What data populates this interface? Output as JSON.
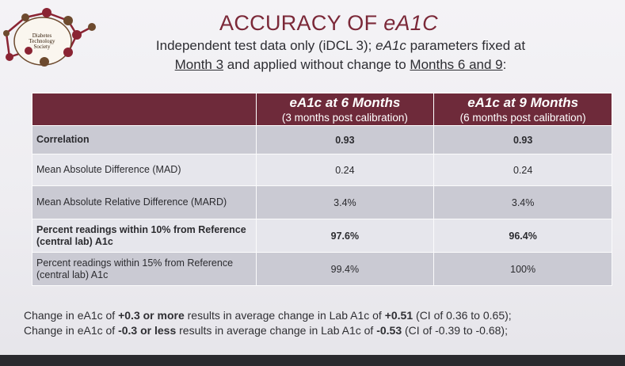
{
  "logo": {
    "lines": [
      "Diabetes",
      "Technology",
      "Society"
    ]
  },
  "title": {
    "main": "ACCURACY OF ",
    "emph": "eA1C"
  },
  "subtitle": {
    "part1": "Independent test data only (iDCL 3); ",
    "part2_italic": "eA1c",
    "part3": " parameters fixed at",
    "part4_underline": "Month 3",
    "part5": " and applied without change to ",
    "part6_underline": "Months 6 and 9",
    "part7": ":"
  },
  "table": {
    "columns": [
      {
        "title": "eA1c at 6 Months",
        "sub": "(3 months post calibration)"
      },
      {
        "title": "eA1c at 9 Months",
        "sub": "(6 months post calibration)"
      }
    ],
    "rows": [
      {
        "label": "Correlation",
        "v6": "0.93",
        "v9": "0.93"
      },
      {
        "label": "Mean Absolute Difference (MAD)",
        "v6": "0.24",
        "v9": "0.24"
      },
      {
        "label": "Mean Absolute Relative Difference (MARD)",
        "v6": "3.4%",
        "v9": "3.4%"
      },
      {
        "label": "Percent readings within 10% from Reference (central lab) A1c",
        "v6": "97.6%",
        "v9": "96.4%"
      },
      {
        "label": "Percent readings within 15% from Reference (central lab) A1c",
        "v6": "99.4%",
        "v9": "100%"
      }
    ]
  },
  "notes": {
    "line1": {
      "a": "Change in eA1c of ",
      "b": "+0.3 or more",
      "c": " results in average change in Lab A1c of ",
      "d": "+0.51",
      "e": " (CI of 0.36 to 0.65);"
    },
    "line2": {
      "a": "Change in eA1c of ",
      "b": "-0.3 or less",
      "c": " results in average change in Lab A1c of ",
      "d": "-0.53",
      "e": " (CI of -0.39 to -0.68);"
    }
  },
  "colors": {
    "accent": "#7b2838",
    "header_bg": "#6e2a3a",
    "row_dark": "#cacad3",
    "row_light": "#e6e6ec"
  }
}
